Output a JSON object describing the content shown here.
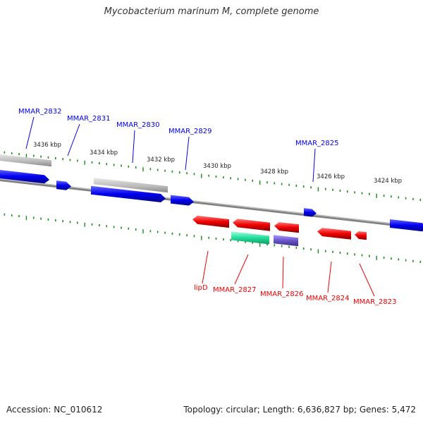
{
  "title": "Mycobacterium marinum M, complete genome",
  "footer": {
    "accession": "Accession: NC_010612",
    "summary": "Topology: circular; Length: 6,636,827 bp; Genes: 5,472"
  },
  "colors": {
    "forward_gene": "#0000ee",
    "reverse_gene": "#ee0000",
    "feature_gray": "#b8b8b8",
    "feature_green": "#22dd99",
    "feature_purple": "#6a55cc",
    "backbone": "#808080",
    "ticks": "#1a8a1a"
  },
  "scale_labels": [
    "3436 kbp",
    "3434 kbp",
    "3432 kbp",
    "3430 kbp",
    "3428 kbp",
    "3426 kbp",
    "3424 kbp"
  ],
  "forward_genes": [
    "MMAR_2832",
    "MMAR_2831",
    "MMAR_2830",
    "MMAR_2829",
    "MMAR_2825"
  ],
  "reverse_genes": [
    "lipD",
    "MMAR_2827",
    "MMAR_2826",
    "MMAR_2824",
    "MMAR_2823"
  ]
}
